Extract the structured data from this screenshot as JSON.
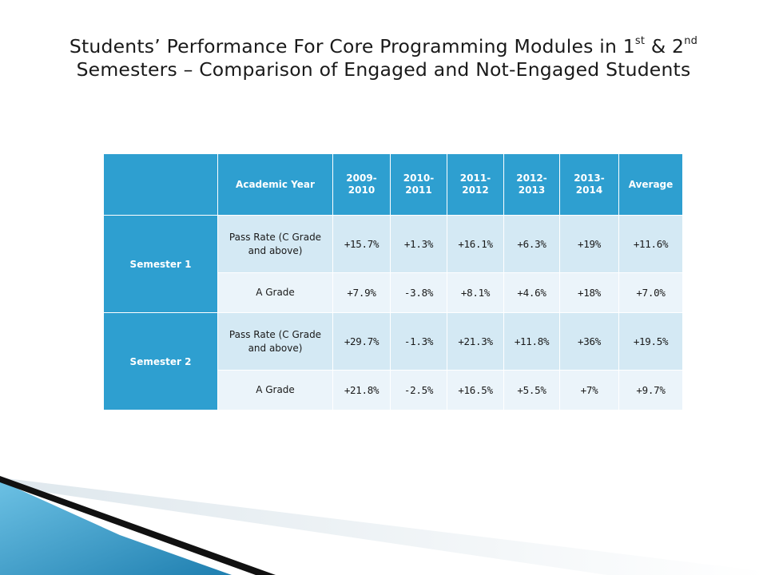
{
  "slide": {
    "title_line1_a": "Students’ Performance For Core Programming Modules in 1",
    "title_sup1": "st",
    "title_line1_b": " & 2",
    "title_sup2": "nd",
    "title_line2": "Semesters – Comparison of Engaged and Not-Engaged Students"
  },
  "table": {
    "header": {
      "academic_year": "Academic Year",
      "years": [
        "2009-2010",
        "2010-2011",
        "2011-2012",
        "2012-2013",
        "2013-2014"
      ],
      "year_lines": [
        [
          "2009-",
          "2010"
        ],
        [
          "2010-",
          "2011"
        ],
        [
          "2011-",
          "2012"
        ],
        [
          "2012-",
          "2013"
        ],
        [
          "2013-",
          "2014"
        ]
      ],
      "average": "Average"
    },
    "groups": [
      {
        "label": "Semester 1",
        "rows": [
          {
            "metric": "Pass Rate (C Grade and above)",
            "values": [
              "+15.7%",
              "+1.3%",
              "+16.1%",
              "+6.3%",
              "+19%",
              "+11.6%"
            ]
          },
          {
            "metric": "A Grade",
            "values": [
              "+7.9%",
              "-3.8%",
              "+8.1%",
              "+4.6%",
              "+18%",
              "+7.0%"
            ]
          }
        ]
      },
      {
        "label": "Semester 2",
        "rows": [
          {
            "metric": "Pass Rate (C Grade and above)",
            "values": [
              "+29.7%",
              "-1.3%",
              "+21.3%",
              "+11.8%",
              "+36%",
              "+19.5%"
            ]
          },
          {
            "metric": "A Grade",
            "values": [
              "+21.8%",
              "-2.5%",
              "+16.5%",
              "+5.5%",
              "+7%",
              "+9.7%"
            ]
          }
        ]
      }
    ]
  },
  "colors": {
    "header_bg": "#2e9fd0",
    "row_dark": "#d4e9f4",
    "row_light": "#ebf4fa",
    "deco_blue": "#3a9cc9",
    "deco_black": "#111111"
  }
}
